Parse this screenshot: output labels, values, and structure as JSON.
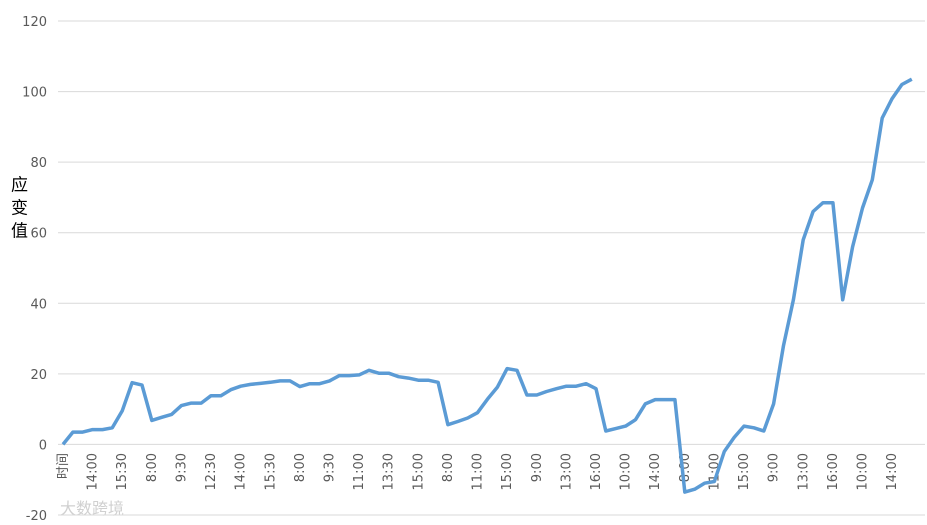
{
  "chart_data": {
    "type": "line",
    "y_label": "应变值",
    "watermark": "大数跨境",
    "categories": [
      "时间",
      null,
      null,
      "14:00",
      null,
      null,
      "15:30",
      null,
      null,
      "8:00",
      null,
      null,
      "9:30",
      null,
      null,
      "12:30",
      null,
      null,
      "14:00",
      null,
      null,
      "15:30",
      null,
      null,
      "8:00",
      null,
      null,
      "9:30",
      null,
      null,
      "11:00",
      null,
      null,
      "13:30",
      null,
      null,
      "15:00",
      null,
      null,
      "8:00",
      null,
      null,
      "11:00",
      null,
      null,
      "15:00",
      null,
      null,
      "9:00",
      null,
      null,
      "13:00",
      null,
      null,
      "16:00",
      null,
      null,
      "10:00",
      null,
      null,
      "14:00",
      null,
      null,
      "8:00",
      null,
      null,
      "11:00",
      null,
      null,
      "15:00",
      null,
      null,
      "9:00",
      null,
      null,
      "13:00",
      null,
      null,
      "16:00",
      null,
      null,
      "10:00",
      null,
      null,
      "14:00",
      null,
      null
    ],
    "values": [
      0,
      3.5,
      3.5,
      4.2,
      4.2,
      4.7,
      9.5,
      17.5,
      16.8,
      6.8,
      7.7,
      8.5,
      11,
      11.7,
      11.7,
      13.8,
      13.8,
      15.5,
      16.5,
      17,
      17.3,
      17.6,
      18,
      18,
      16.4,
      17.2,
      17.2,
      18,
      19.5,
      19.5,
      19.7,
      21,
      20.2,
      20.2,
      19.2,
      18.8,
      18.2,
      18.2,
      17.6,
      5.6,
      6.5,
      7.5,
      9,
      12.8,
      16.2,
      21.5,
      21,
      14,
      14,
      15,
      15.8,
      16.5,
      16.5,
      17.2,
      15.8,
      3.8,
      4.5,
      5.2,
      7,
      11.5,
      12.7,
      12.7,
      12.7,
      -13.5,
      -12.7,
      -11,
      -10.5,
      -2,
      2,
      5.2,
      4.7,
      3.8,
      11.5,
      28,
      41,
      58,
      66,
      68.5,
      68.5,
      41,
      56,
      67,
      75,
      92.5,
      98,
      102,
      103.5
    ],
    "color": "#5b9bd5",
    "ylim": [
      -20,
      120
    ],
    "yticks": [
      -20,
      0,
      20,
      40,
      60,
      80,
      100,
      120
    ],
    "grid": true
  }
}
